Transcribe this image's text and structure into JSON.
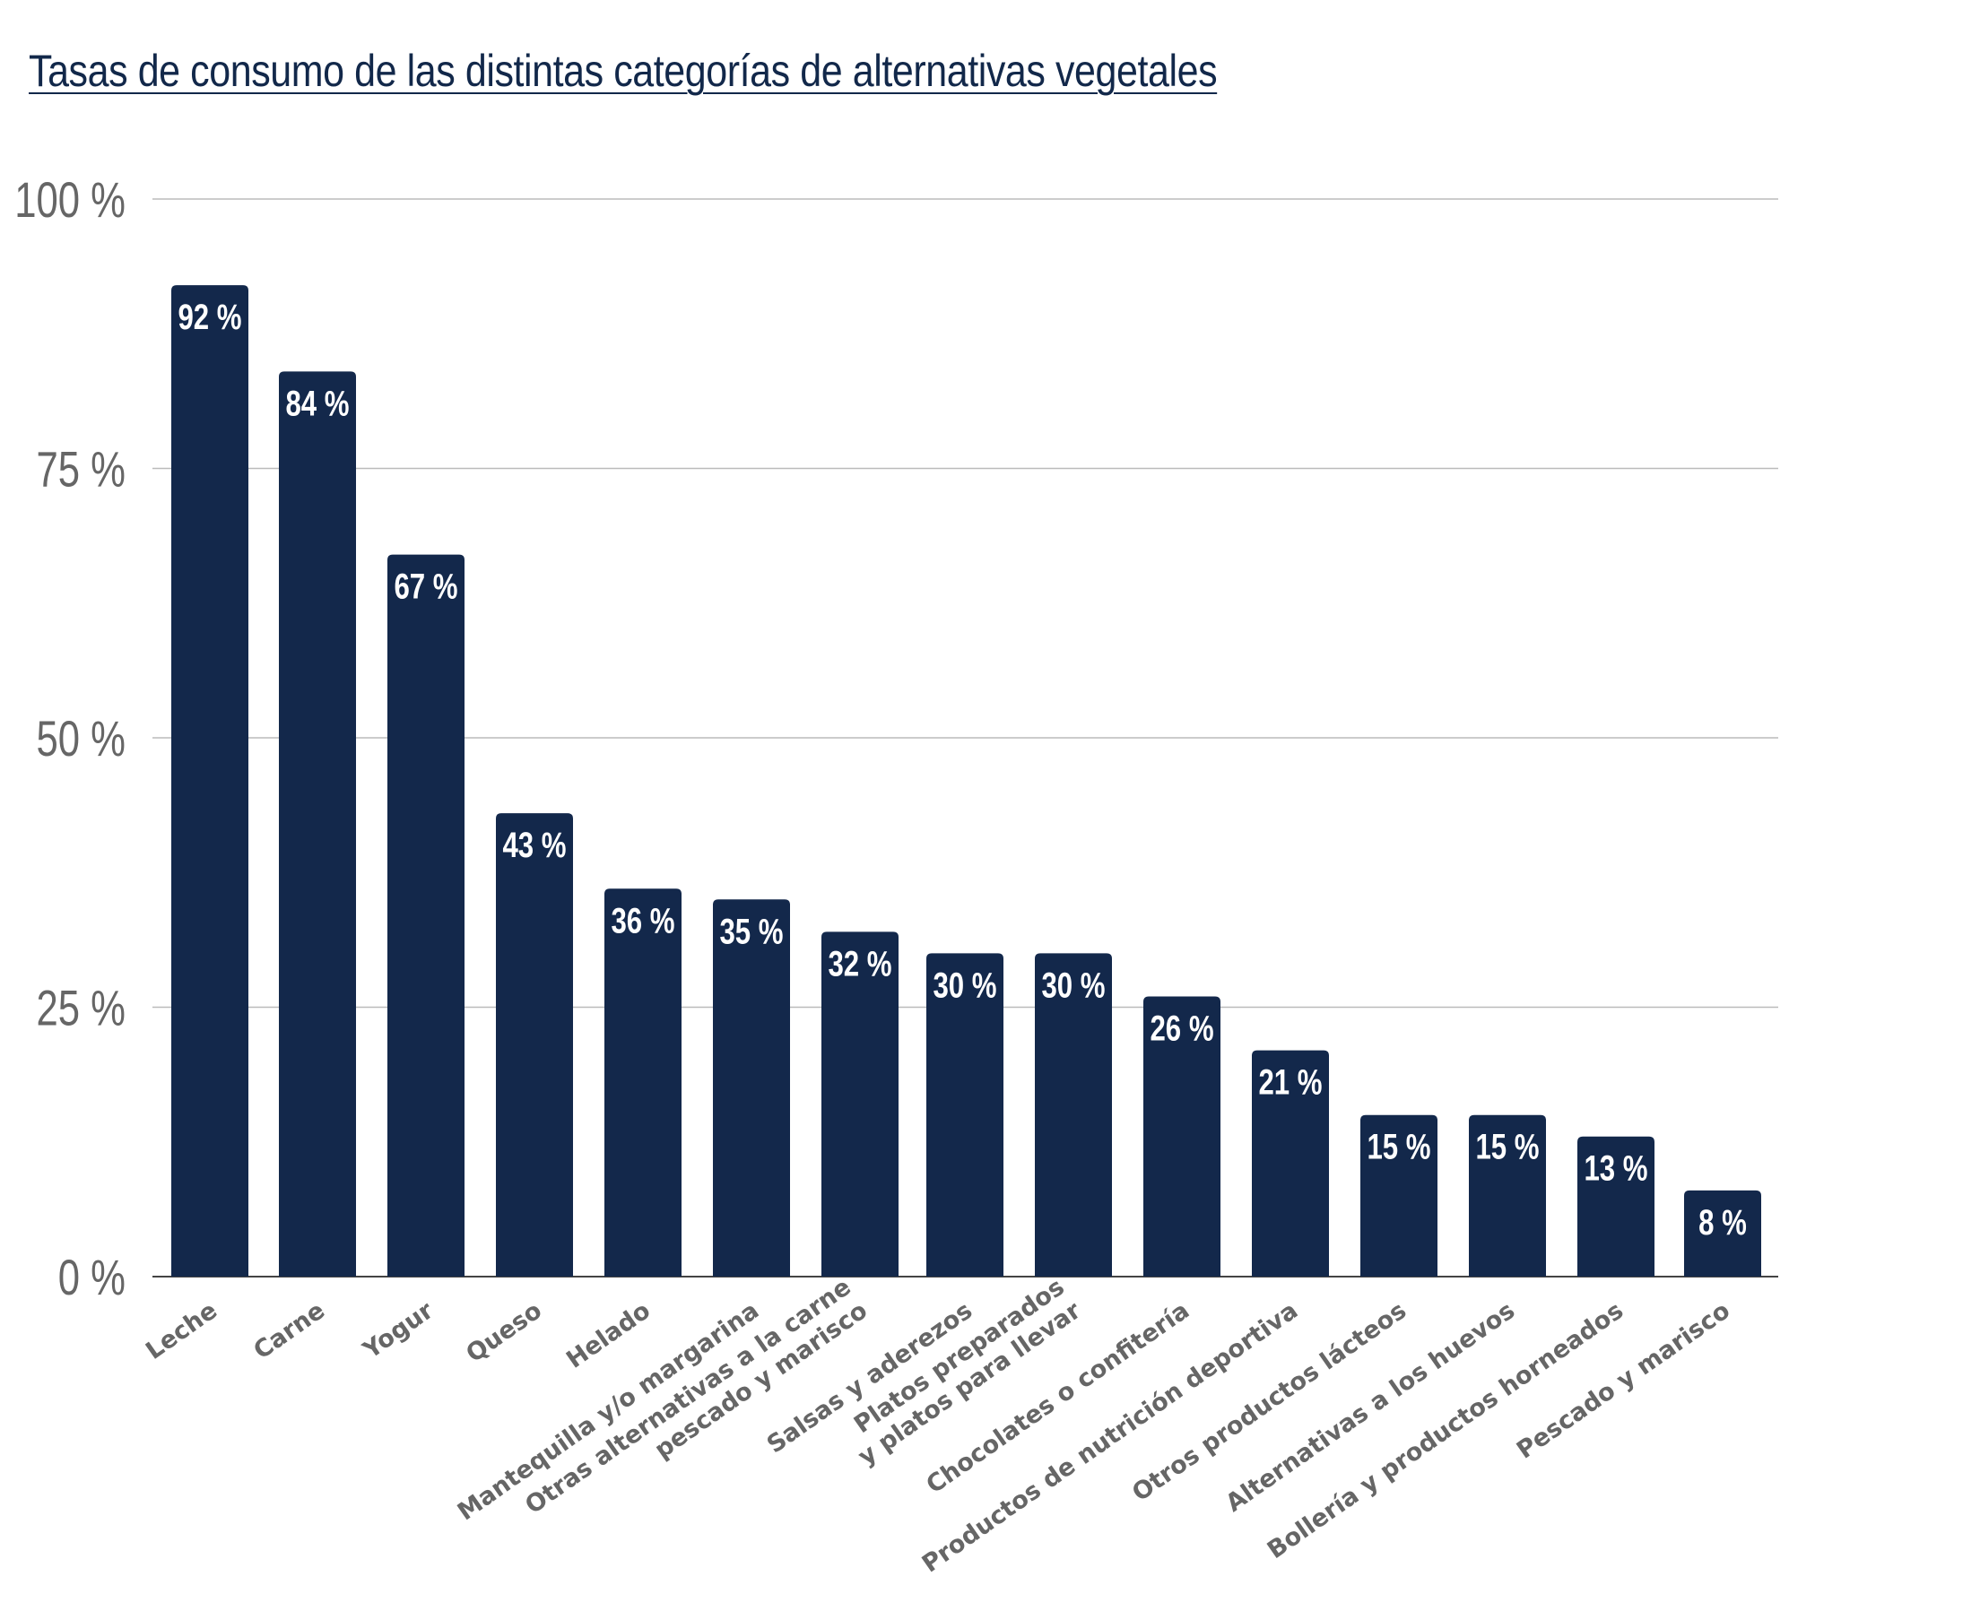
{
  "chart_data": {
    "type": "bar",
    "title": "Tasas de consumo de las distintas categorías de alternativas vegetales",
    "categories": [
      "Leche",
      "Carne",
      "Yogur",
      "Queso",
      "Helado",
      "Mantequilla y/o margarina",
      "Otras alternativas a la carne\npescado y marisco",
      "Salsas y aderezos",
      "Platos preparados\ny platos para llevar",
      "Chocolates o confitería",
      "Productos de nutrición deportiva",
      "Otros productos lácteos",
      "Alternativas a los huevos",
      "Bollería y productos horneados",
      "Pescado y marisco"
    ],
    "values": [
      92,
      84,
      67,
      43,
      36,
      35,
      32,
      30,
      30,
      26,
      21,
      15,
      15,
      13,
      8
    ],
    "value_labels": [
      "92 %",
      "84 %",
      "67 %",
      "43 %",
      "36 %",
      "35 %",
      "32 %",
      "30 %",
      "30 %",
      "26 %",
      "21 %",
      "15 %",
      "15 %",
      "13 %",
      "8 %"
    ],
    "yticks": [
      0,
      25,
      50,
      75,
      100
    ],
    "ytick_labels": [
      "0 %",
      "25 %",
      "50 %",
      "75 %",
      "100 %"
    ],
    "ylim": [
      0,
      100
    ],
    "xlabel": "",
    "ylabel": "",
    "grid": true,
    "legend": "none",
    "bar_color": "#13284b",
    "grid_color": "#bbbbbb"
  }
}
